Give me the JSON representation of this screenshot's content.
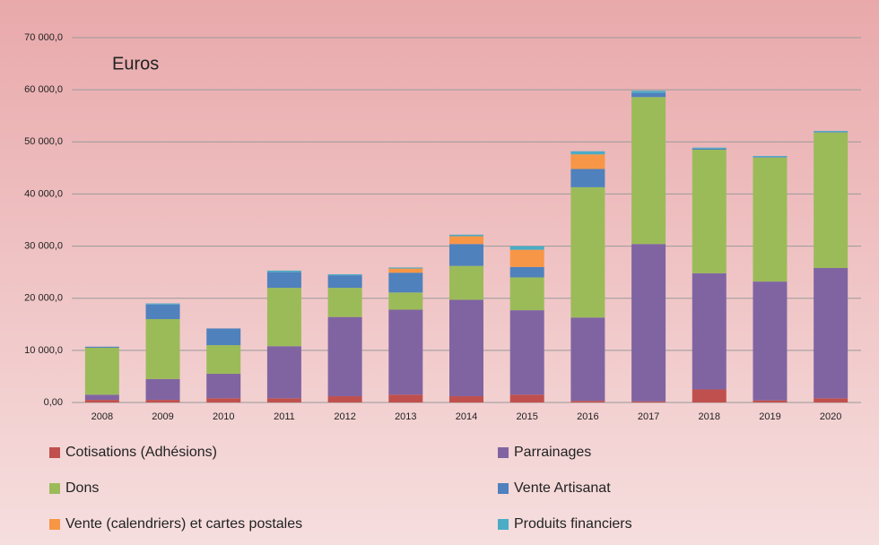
{
  "chart_data": {
    "type": "stacked_bar",
    "title": "Euros",
    "categories": [
      "2008",
      "2009",
      "2010",
      "2011",
      "2012",
      "2013",
      "2014",
      "2015",
      "2016",
      "2017",
      "2018",
      "2019",
      "2020"
    ],
    "series": [
      {
        "name": "Cotisations (Adhésions)",
        "color": "#c0504d",
        "values": [
          500,
          500,
          800,
          800,
          1200,
          1500,
          1200,
          1500,
          300,
          200,
          2500,
          400,
          800
        ]
      },
      {
        "name": "Parrainages",
        "color": "#8064a2",
        "values": [
          1000,
          4000,
          4700,
          10000,
          15200,
          16300,
          18500,
          16200,
          16000,
          30200,
          22300,
          22800,
          25000
        ]
      },
      {
        "name": "Dons",
        "color": "#9bbb59",
        "values": [
          9000,
          11500,
          5500,
          11200,
          5600,
          3300,
          6500,
          6300,
          25000,
          28200,
          23700,
          23800,
          26000
        ]
      },
      {
        "name": "Vente Artisanat",
        "color": "#4f81bd",
        "values": [
          200,
          2800,
          3200,
          3000,
          2400,
          3800,
          4200,
          2000,
          3500,
          800,
          200,
          100,
          100
        ]
      },
      {
        "name": "Vente (calendriers) et cartes postales",
        "color": "#f79646",
        "values": [
          0,
          0,
          0,
          0,
          0,
          800,
          1500,
          3300,
          2800,
          0,
          0,
          0,
          0
        ]
      },
      {
        "name": "Produits financiers",
        "color": "#4bacc6",
        "values": [
          0,
          200,
          0,
          300,
          200,
          200,
          300,
          700,
          600,
          400,
          200,
          200,
          200
        ]
      }
    ],
    "ylim": [
      0,
      70000
    ],
    "yticks": [
      {
        "value": 0,
        "label": "0,00"
      },
      {
        "value": 10000,
        "label": "10 000,0"
      },
      {
        "value": 20000,
        "label": "20 000,0"
      },
      {
        "value": 30000,
        "label": "30 000,0"
      },
      {
        "value": 40000,
        "label": "40 000,0"
      },
      {
        "value": 50000,
        "label": "50 000,0"
      },
      {
        "value": 60000,
        "label": "60 000,0"
      },
      {
        "value": 70000,
        "label": "70 000,0"
      }
    ],
    "grid": true
  }
}
